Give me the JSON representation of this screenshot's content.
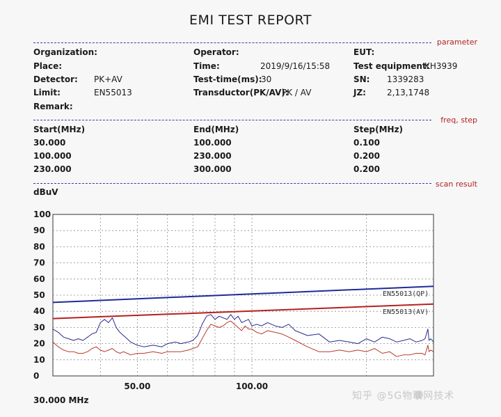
{
  "title": "EMI TEST REPORT",
  "sections": {
    "parameter": "parameter",
    "freq_step": "freq, step",
    "scan_result": "scan result"
  },
  "params": {
    "organization_label": "Organization:",
    "place_label": "Place:",
    "detector_label": "Detector:",
    "detector_value": "PK+AV",
    "limit_label": "Limit:",
    "limit_value": "EN55013",
    "remark_label": "Remark:",
    "operator_label": "Operator:",
    "time_label": "Time:",
    "time_value": "2019/9/16/15:58",
    "testtime_label": "Test-time(ms):",
    "testtime_value": "30",
    "transductor_label": "Transductor(PK/AV):",
    "transductor_value": "PK  /  AV",
    "eut_label": "EUT:",
    "equipment_label": "Test equipment:",
    "equipment_value": "KH3939",
    "sn_label": "SN:",
    "sn_value": "1339283",
    "jz_label": "JZ:",
    "jz_value": "2,13,1748"
  },
  "freq_table": {
    "headers": [
      "Start(MHz)",
      "End(MHz)",
      "Step(MHz)"
    ],
    "rows": [
      [
        "30.000",
        "100.000",
        "0.100"
      ],
      [
        "100.000",
        "230.000",
        "0.200"
      ],
      [
        "230.000",
        "300.000",
        "0.200"
      ]
    ]
  },
  "footer": {
    "start_freq": "30.000 MHz",
    "watermark": "知乎 @5G物联网技术"
  },
  "colors": {
    "qp_limit": "#1f2a9a",
    "av_limit": "#b52020",
    "pk_trace": "#2a2a8c",
    "av_trace": "#b83a2a",
    "grid": "#8a8a8a",
    "rule": "#3a3aa8",
    "section_label": "#b22222"
  },
  "chart_data": {
    "type": "line",
    "ylabel": "dBuV",
    "ylim": [
      0,
      100
    ],
    "yticks": [
      "0",
      "10",
      "20",
      "30",
      "40",
      "50",
      "60",
      "70",
      "80",
      "90",
      "100"
    ],
    "xscale": "log",
    "xlim": [
      30,
      300
    ],
    "xtick_labels": [
      {
        "value": 50,
        "label": "50.00"
      },
      {
        "value": 100,
        "label": "100.00"
      }
    ],
    "grid": true,
    "limit_lines": [
      {
        "name": "EN55013(QP)",
        "x": [
          30,
          300
        ],
        "y": [
          45.5,
          55.5
        ]
      },
      {
        "name": "EN55013(AV)",
        "x": [
          30,
          300
        ],
        "y": [
          35.5,
          44.5
        ]
      }
    ],
    "series": [
      {
        "x": [
          30,
          31,
          32,
          33,
          34,
          35,
          36,
          37,
          38,
          39,
          40,
          41,
          42,
          43,
          44,
          45,
          46,
          47,
          48,
          50,
          52,
          55,
          58,
          60,
          63,
          65,
          68,
          70,
          72,
          74,
          76,
          78,
          80,
          82,
          84,
          86,
          88,
          90,
          92,
          94,
          96,
          98,
          100,
          103,
          106,
          110,
          115,
          120,
          125,
          130,
          140,
          150,
          160,
          170,
          180,
          190,
          200,
          210,
          220,
          230,
          240,
          250,
          260,
          270,
          280,
          285,
          290,
          292,
          295,
          300
        ],
        "y": [
          29,
          27,
          24,
          23,
          22,
          23,
          22,
          24,
          26,
          27,
          33,
          35,
          33,
          36,
          30,
          27,
          25,
          23,
          21,
          19,
          18,
          19,
          18,
          20,
          21,
          20,
          21,
          22,
          25,
          32,
          37,
          38,
          35,
          37,
          36,
          35,
          38,
          35,
          37,
          33,
          34,
          35,
          31,
          32,
          31,
          33,
          31,
          30,
          32,
          28,
          25,
          26,
          21,
          22,
          21,
          20,
          23,
          21,
          24,
          23,
          21,
          22,
          23,
          21,
          22,
          23,
          29,
          22,
          23,
          21
        ]
      },
      {
        "x": [
          30,
          31,
          32,
          33,
          34,
          35,
          36,
          37,
          38,
          39,
          40,
          41,
          42,
          43,
          44,
          45,
          46,
          47,
          48,
          50,
          52,
          55,
          58,
          60,
          63,
          65,
          68,
          70,
          72,
          74,
          76,
          78,
          80,
          82,
          84,
          86,
          88,
          90,
          92,
          94,
          96,
          98,
          100,
          103,
          106,
          110,
          115,
          120,
          125,
          130,
          140,
          150,
          160,
          170,
          180,
          190,
          200,
          210,
          220,
          230,
          240,
          250,
          260,
          270,
          280,
          285,
          290,
          292,
          295,
          300
        ],
        "y": [
          21,
          18,
          16,
          15,
          15,
          14,
          14,
          15,
          17,
          18,
          16,
          15,
          16,
          17,
          15,
          14,
          15,
          14,
          13,
          14,
          14,
          15,
          14,
          15,
          15,
          15,
          16,
          17,
          18,
          23,
          28,
          32,
          31,
          30,
          31,
          33,
          34,
          32,
          30,
          28,
          31,
          29,
          29,
          27,
          26,
          28,
          27,
          26,
          24,
          22,
          18,
          15,
          15,
          16,
          15,
          16,
          15,
          17,
          14,
          15,
          12,
          13,
          13,
          14,
          14,
          13,
          19,
          15,
          16,
          15
        ]
      }
    ]
  }
}
